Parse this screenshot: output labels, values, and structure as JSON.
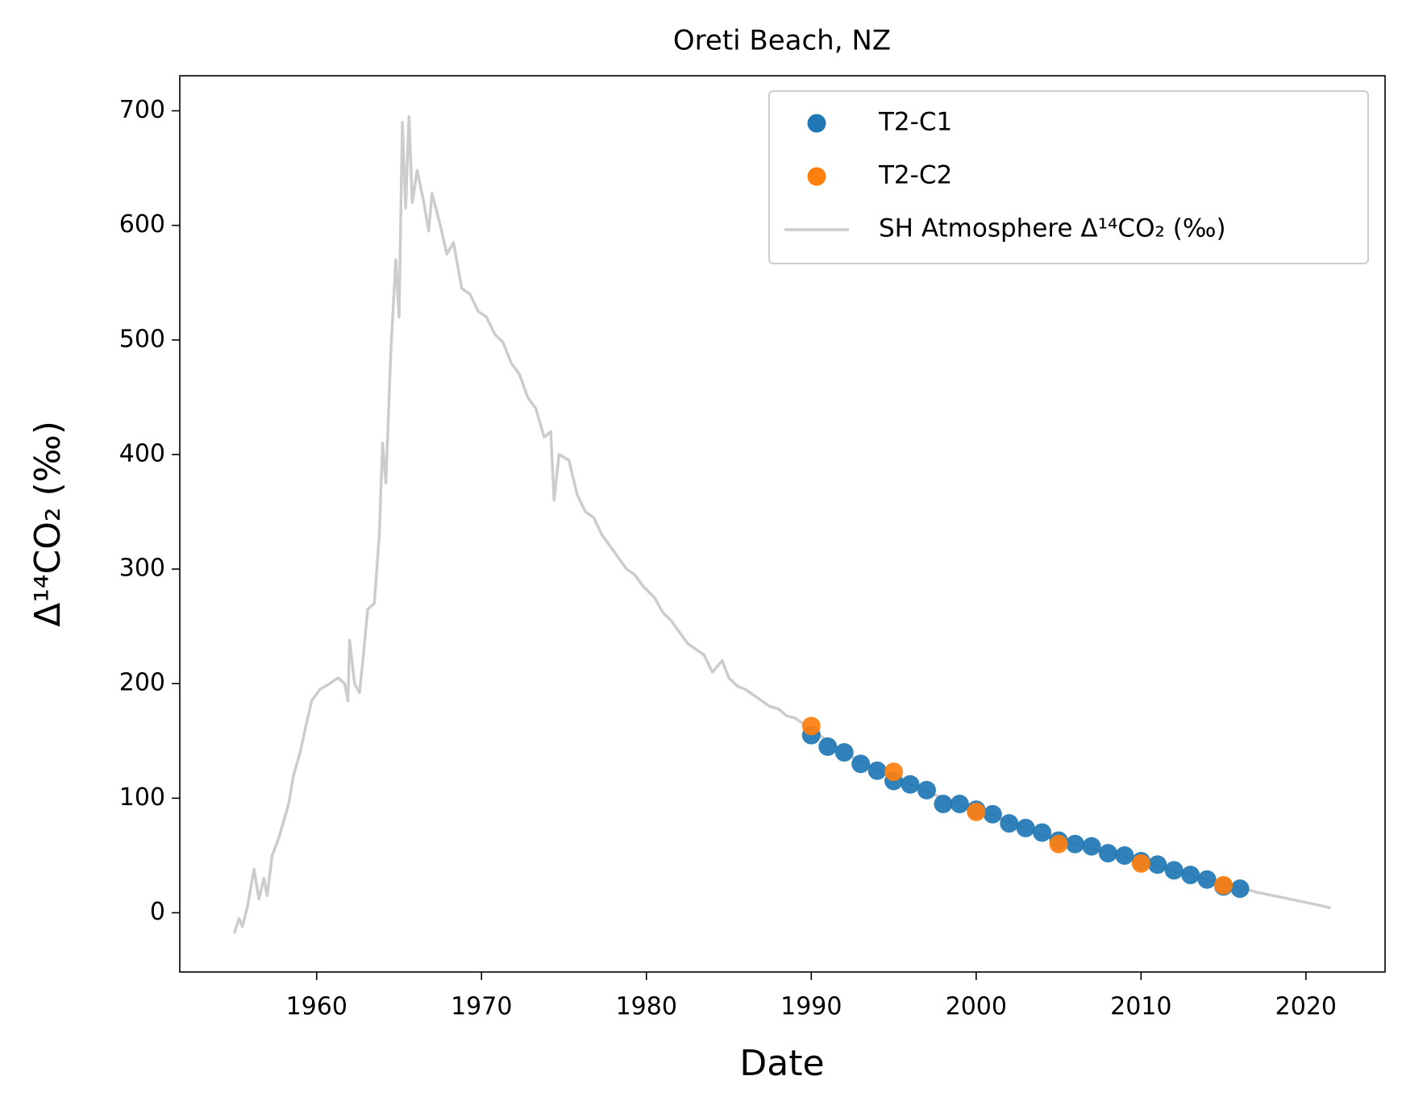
{
  "chart_data": {
    "type": "scatter",
    "title": "Oreti Beach, NZ",
    "x_label": "Date",
    "y_label": "Δ¹⁴CO₂ (‰)",
    "xlim": [
      1951.7,
      2024.8
    ],
    "ylim": [
      -51.7,
      730.6
    ],
    "xticks": [
      1960,
      1970,
      1980,
      1990,
      2000,
      2010,
      2020
    ],
    "yticks": [
      0,
      100,
      200,
      300,
      400,
      500,
      600,
      700
    ],
    "legend": "upper right",
    "series": [
      {
        "name": "T2-C1",
        "color": "#1f77b4",
        "mode": "markers",
        "x": [
          1990,
          1991,
          1992,
          1993,
          1994,
          1995,
          1996,
          1997,
          1998,
          1999,
          2000,
          2001,
          2002,
          2003,
          2004,
          2005,
          2006,
          2007,
          2008,
          2009,
          2010,
          2011,
          2012,
          2013,
          2014,
          2015,
          2016
        ],
        "values": [
          155,
          145,
          140,
          130,
          124,
          115,
          112,
          107,
          95,
          95,
          90,
          86,
          78,
          74,
          70,
          63,
          60,
          58,
          52,
          50,
          45,
          42,
          37,
          33,
          29,
          23,
          21
        ]
      },
      {
        "name": "T2-C2",
        "color": "#ff7f0e",
        "mode": "markers",
        "x": [
          1990,
          1995,
          2000,
          2005,
          2010,
          2015
        ],
        "values": [
          163,
          123,
          88,
          60,
          43,
          24
        ]
      },
      {
        "name": "SH Atmosphere Δ¹⁴CO₂ (‰)",
        "color": "#cccccc",
        "mode": "line",
        "x": [
          1955.0,
          1955.3,
          1955.5,
          1955.8,
          1956.2,
          1956.5,
          1956.8,
          1957.0,
          1957.3,
          1957.7,
          1958.0,
          1958.3,
          1958.6,
          1959.0,
          1959.3,
          1959.7,
          1960.2,
          1960.8,
          1961.3,
          1961.7,
          1961.9,
          1962.0,
          1962.3,
          1962.6,
          1962.8,
          1963.1,
          1963.5,
          1963.8,
          1964.0,
          1964.2,
          1964.5,
          1964.8,
          1965.0,
          1965.2,
          1965.4,
          1965.6,
          1965.8,
          1966.1,
          1966.5,
          1966.8,
          1967.0,
          1967.5,
          1967.9,
          1968.3,
          1968.8,
          1969.3,
          1969.8,
          1970.3,
          1970.8,
          1971.3,
          1971.8,
          1972.3,
          1972.8,
          1973.3,
          1973.8,
          1974.2,
          1974.4,
          1974.7,
          1975.3,
          1975.8,
          1976.3,
          1976.8,
          1977.3,
          1977.8,
          1978.3,
          1978.8,
          1979.3,
          1979.8,
          1980.5,
          1981.0,
          1981.5,
          1982.0,
          1982.5,
          1983.0,
          1983.5,
          1984.0,
          1984.6,
          1985.0,
          1985.5,
          1986.0,
          1986.5,
          1987.0,
          1987.5,
          1988.0,
          1988.5,
          1989.0,
          1989.5,
          1990,
          1991,
          1992,
          1993,
          1994,
          1995,
          1996,
          1997,
          1998,
          1999,
          2000,
          2001,
          2002,
          2003,
          2004,
          2005,
          2006,
          2007,
          2008,
          2009,
          2010,
          2011,
          2012,
          2013,
          2014,
          2015,
          2016,
          2017,
          2018,
          2019,
          2020,
          2021,
          2021.5
        ],
        "values": [
          -18,
          -5,
          -12,
          5,
          38,
          12,
          30,
          15,
          50,
          65,
          80,
          95,
          120,
          140,
          160,
          185,
          195,
          200,
          205,
          200,
          185,
          238,
          200,
          192,
          220,
          265,
          270,
          330,
          410,
          375,
          490,
          570,
          520,
          690,
          615,
          695,
          620,
          648,
          620,
          595,
          628,
          600,
          575,
          585,
          545,
          540,
          525,
          520,
          505,
          498,
          480,
          470,
          450,
          440,
          415,
          420,
          360,
          400,
          395,
          365,
          350,
          345,
          330,
          320,
          310,
          300,
          295,
          285,
          275,
          262,
          255,
          245,
          235,
          230,
          225,
          210,
          220,
          205,
          198,
          195,
          190,
          185,
          180,
          178,
          172,
          170,
          165,
          160,
          150,
          140,
          132,
          125,
          118,
          112,
          106,
          100,
          95,
          90,
          85,
          79,
          74,
          68,
          63,
          60,
          56,
          52,
          49,
          45,
          41,
          37,
          33,
          29,
          25,
          22,
          18,
          15,
          12,
          9,
          6,
          4
        ]
      }
    ]
  }
}
